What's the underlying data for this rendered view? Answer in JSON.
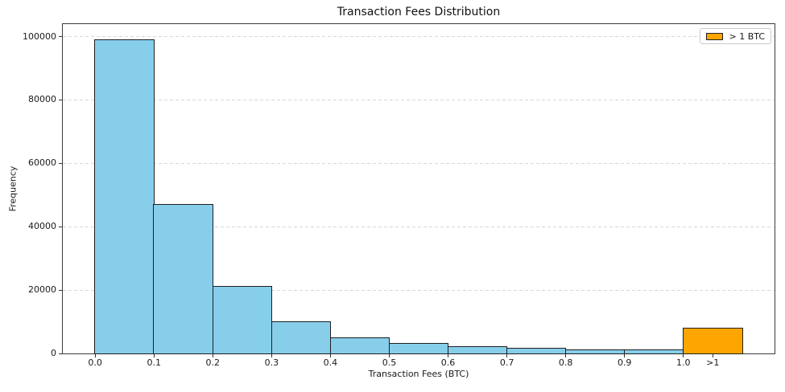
{
  "chart_data": {
    "type": "bar",
    "title": "Transaction Fees Distribution",
    "xlabel": "Transaction Fees (BTC)",
    "ylabel": "Frequency",
    "xlim": [
      -0.055,
      1.155
    ],
    "ylim": [
      0,
      103950
    ],
    "grid": {
      "axis": "y",
      "style": "dashed",
      "color": "#d7d7d7"
    },
    "bar_edge_color": "#1f1f1f",
    "colors": {
      "bar": "#87CEEB",
      "highlight": "#FFA500"
    },
    "bins": [
      {
        "x0": 0.0,
        "x1": 0.1,
        "value": 99000,
        "color": "#87CEEB"
      },
      {
        "x0": 0.1,
        "x1": 0.2,
        "value": 47000,
        "color": "#87CEEB"
      },
      {
        "x0": 0.2,
        "x1": 0.3,
        "value": 21000,
        "color": "#87CEEB"
      },
      {
        "x0": 0.3,
        "x1": 0.4,
        "value": 10000,
        "color": "#87CEEB"
      },
      {
        "x0": 0.4,
        "x1": 0.5,
        "value": 5000,
        "color": "#87CEEB"
      },
      {
        "x0": 0.5,
        "x1": 0.6,
        "value": 3200,
        "color": "#87CEEB"
      },
      {
        "x0": 0.6,
        "x1": 0.7,
        "value": 2200,
        "color": "#87CEEB"
      },
      {
        "x0": 0.7,
        "x1": 0.8,
        "value": 1700,
        "color": "#87CEEB"
      },
      {
        "x0": 0.8,
        "x1": 0.9,
        "value": 1200,
        "color": "#87CEEB"
      },
      {
        "x0": 0.9,
        "x1": 1.0,
        "value": 1000,
        "color": "#87CEEB"
      },
      {
        "x0": 1.0,
        "x1": 1.1,
        "value": 8000,
        "color": "#FFA500",
        "label": "> 1 BTC"
      }
    ],
    "x_ticks": [
      {
        "x": 0.0,
        "label": "0.0"
      },
      {
        "x": 0.1,
        "label": "0.1"
      },
      {
        "x": 0.2,
        "label": "0.2"
      },
      {
        "x": 0.3,
        "label": "0.3"
      },
      {
        "x": 0.4,
        "label": "0.4"
      },
      {
        "x": 0.5,
        "label": "0.5"
      },
      {
        "x": 0.6,
        "label": "0.6"
      },
      {
        "x": 0.7,
        "label": "0.7"
      },
      {
        "x": 0.8,
        "label": "0.8"
      },
      {
        "x": 0.9,
        "label": "0.9"
      },
      {
        "x": 1.0,
        "label": "1.0"
      },
      {
        "x": 1.05,
        "label": ">1"
      }
    ],
    "y_ticks": [
      {
        "v": 0,
        "label": "0"
      },
      {
        "v": 20000,
        "label": "20000"
      },
      {
        "v": 40000,
        "label": "40000"
      },
      {
        "v": 60000,
        "label": "60000"
      },
      {
        "v": 80000,
        "label": "80000"
      },
      {
        "v": 100000,
        "label": "100000"
      }
    ],
    "legend": {
      "label": "> 1 BTC",
      "swatch_color": "#FFA500",
      "position": "upper-right"
    }
  }
}
